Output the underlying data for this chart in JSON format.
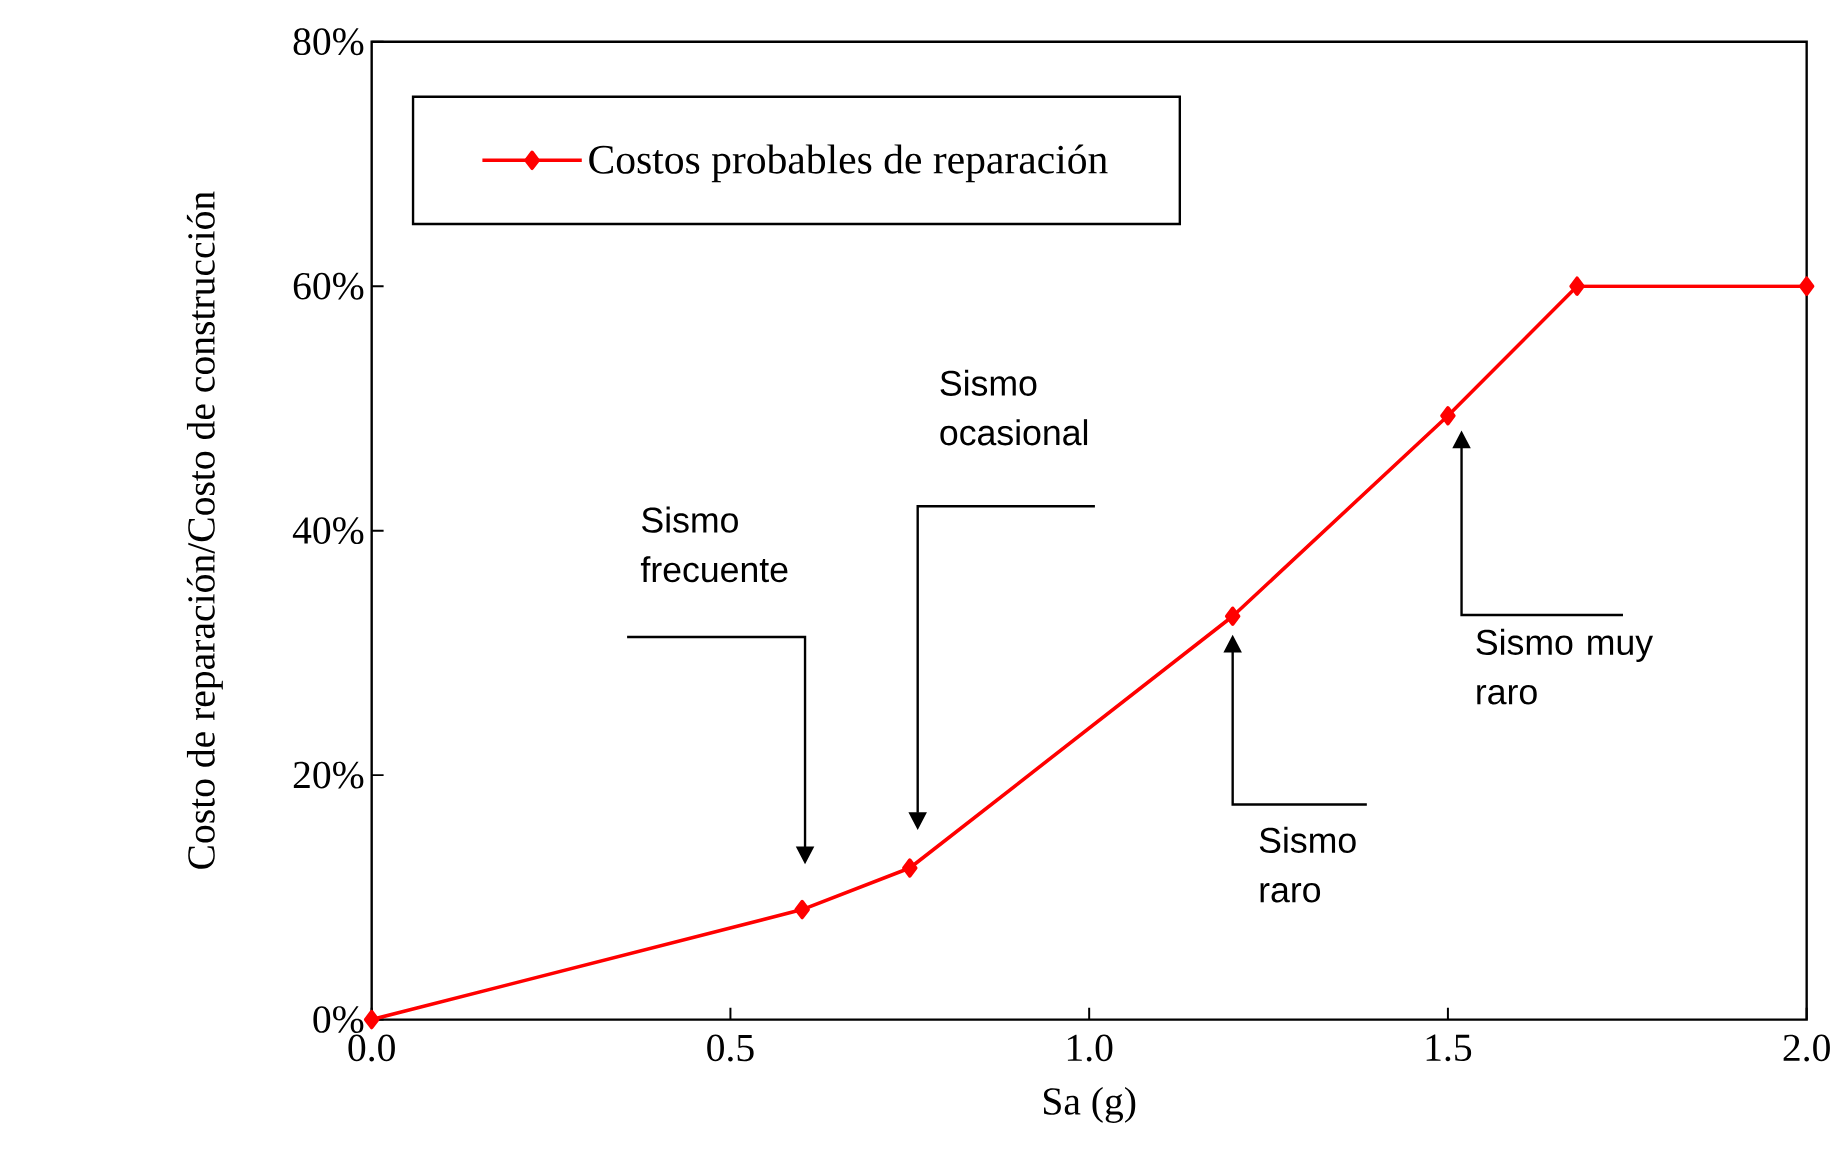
{
  "chart_data": {
    "type": "line",
    "xlabel": "Sa (g)",
    "ylabel": "Costo de reparación/Costo de construcción",
    "x": [
      0,
      0.6,
      0.75,
      1.2,
      1.5,
      1.68,
      2.0
    ],
    "series": [
      {
        "name": "Costos probables de reparación",
        "color": "#ff0000",
        "values": [
          0,
          9,
          12.4,
          33,
          49.4,
          60,
          60
        ]
      }
    ],
    "xlim": [
      0,
      2.0
    ],
    "xticks": [
      {
        "value": 0,
        "label": "0.0"
      },
      {
        "value": 0.5,
        "label": "0.5"
      },
      {
        "value": 1.0,
        "label": "1.0"
      },
      {
        "value": 1.5,
        "label": "1.5"
      },
      {
        "value": 2.0,
        "label": "2.0"
      }
    ],
    "ylim": [
      0,
      80
    ],
    "yticks": [
      {
        "value": 0,
        "label": "0%"
      },
      {
        "value": 20,
        "label": "20%"
      },
      {
        "value": 40,
        "label": "40%"
      },
      {
        "value": 60,
        "label": "60%"
      },
      {
        "value": 80,
        "label": "80%"
      }
    ],
    "annotations": [
      "Sismo frecuente",
      "Sismo ocasional",
      "Sismo raro",
      "Sismo muy raro"
    ],
    "legend": "top left",
    "marker": "diamond",
    "line_style": "solid",
    "grid": false
  }
}
